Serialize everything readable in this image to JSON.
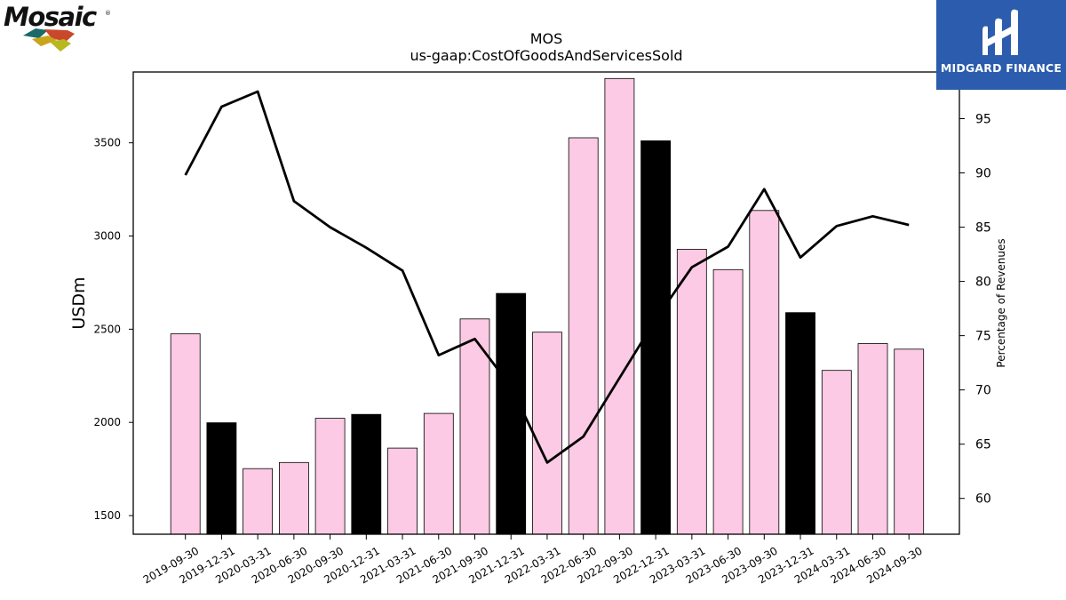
{
  "chart_data": {
    "type": "bar",
    "title": "MOS",
    "subtitle": "us-gaap:CostOfGoodsAndServicesSold",
    "ylabel": "USDm",
    "y2label": "Percentage of Revenues",
    "categories": [
      "2019-09-30",
      "2019-12-31",
      "2020-03-31",
      "2020-06-30",
      "2020-09-30",
      "2020-12-31",
      "2021-03-31",
      "2021-06-30",
      "2021-09-30",
      "2021-12-31",
      "2022-03-31",
      "2022-06-30",
      "2022-09-30",
      "2022-12-31",
      "2023-03-31",
      "2023-06-30",
      "2023-09-30",
      "2023-12-31",
      "2024-03-31",
      "2024-06-30",
      "2024-09-30"
    ],
    "series": [
      {
        "type": "bar",
        "values": [
          2475,
          1998,
          1752,
          1785,
          2022,
          2043,
          1862,
          2048,
          2555,
          2692,
          2484,
          3527,
          3845,
          3511,
          2929,
          2820,
          3137,
          2589,
          2279,
          2423,
          2393
        ],
        "highlight": [
          false,
          true,
          false,
          false,
          false,
          true,
          false,
          false,
          false,
          true,
          false,
          false,
          false,
          true,
          false,
          false,
          false,
          true,
          false,
          false,
          false
        ]
      },
      {
        "type": "line",
        "axis": "right",
        "values": [
          89.8,
          96.1,
          97.5,
          87.4,
          85.0,
          83.1,
          81.0,
          73.2,
          74.7,
          70.3,
          63.3,
          65.7,
          71.1,
          76.5,
          81.3,
          83.2,
          88.5,
          82.2,
          85.1,
          86.0,
          85.2
        ]
      }
    ],
    "ylim": [
      1400,
      3880
    ],
    "yticks": [
      1500,
      2000,
      2500,
      3000,
      3500
    ],
    "y2lim": [
      56.7,
      99.3
    ],
    "y2ticks": [
      60,
      65,
      70,
      75,
      80,
      85,
      90,
      95
    ],
    "grid": false,
    "colors": {
      "bar": "#fccae4",
      "highlight": "#000000",
      "line": "#000000",
      "edge": "#000000"
    }
  },
  "logos": {
    "left_text": "Mosaic",
    "left_mark": "®",
    "right_text": "MIDGARD FINANCE",
    "left_colors": [
      "#1a6a6a",
      "#c9482b",
      "#c9a51a",
      "#b8b820"
    ],
    "right_color": "#2b5cad"
  }
}
